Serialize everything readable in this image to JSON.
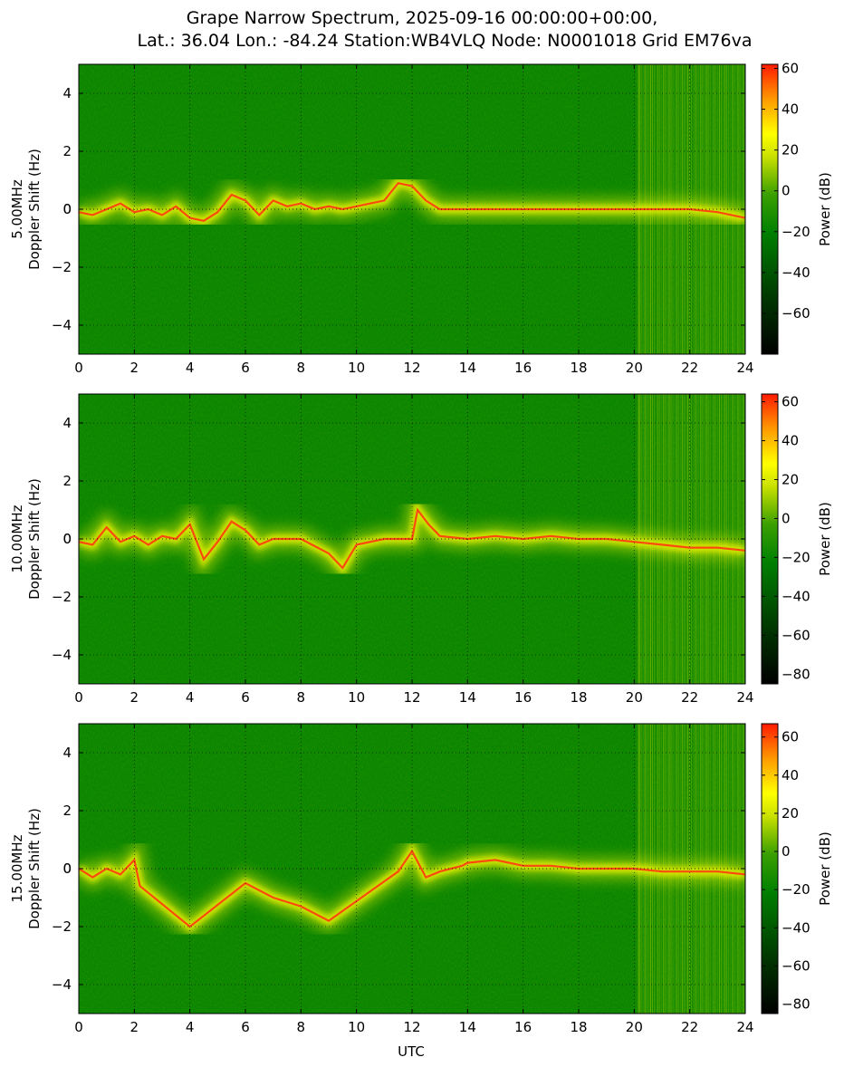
{
  "figure": {
    "title_line1": "Grape Narrow Spectrum, 2025-09-16 00:00:00+00:00,",
    "title_line2": "Lat.: 36.04 Lon.: -84.24 Station:WB4VLQ Node: N0001018 Grid EM76va",
    "xlabel": "UTC"
  },
  "colors": {
    "colormap": [
      "#000000",
      "#004d00",
      "#008000",
      "#3aa000",
      "#b8d800",
      "#ffff00",
      "#ffa000",
      "#ff2000"
    ],
    "background_green": "#008000",
    "ridge_red": "#ff3a10",
    "halo_yellow": "#e8f000"
  },
  "chart_data": [
    {
      "type": "heatmap",
      "band_label": "5.00MHz",
      "ylabel": "Doppler Shift (Hz)",
      "xlim": [
        0,
        24
      ],
      "ylim": [
        -5,
        5
      ],
      "xticks": [
        "0",
        "2",
        "4",
        "6",
        "8",
        "10",
        "12",
        "14",
        "16",
        "18",
        "20",
        "22",
        "24"
      ],
      "yticks": [
        "-4",
        "-2",
        "0",
        "2",
        "4"
      ],
      "grid": true,
      "colorbar": {
        "label": "Power (dB)",
        "range": [
          -80,
          62
        ],
        "ticks": [
          "60",
          "40",
          "20",
          "0",
          "−20",
          "−40",
          "−60"
        ]
      },
      "doppler_trace": {
        "x": [
          0,
          0.5,
          1,
          1.5,
          2,
          2.5,
          3,
          3.5,
          4,
          4.5,
          5,
          5.5,
          6,
          6.5,
          7,
          7.5,
          8,
          8.5,
          9,
          9.5,
          10,
          10.5,
          11,
          11.5,
          12,
          12.5,
          13,
          14,
          16,
          18,
          20,
          21,
          22,
          23,
          24
        ],
        "y": [
          -0.1,
          -0.2,
          0.0,
          0.2,
          -0.1,
          0.0,
          -0.2,
          0.1,
          -0.3,
          -0.4,
          -0.1,
          0.5,
          0.3,
          -0.2,
          0.3,
          0.1,
          0.2,
          0.0,
          0.1,
          0.0,
          0.1,
          0.2,
          0.3,
          0.9,
          0.8,
          0.3,
          0.0,
          0.0,
          0.0,
          0.0,
          0.0,
          0.0,
          0.0,
          -0.1,
          -0.3
        ]
      },
      "signal_segments": [
        [
          0,
          13.5
        ],
        [
          21.5,
          24
        ]
      ]
    },
    {
      "type": "heatmap",
      "band_label": "10.00MHz",
      "ylabel": "Doppler Shift (Hz)",
      "xlim": [
        0,
        24
      ],
      "ylim": [
        -5,
        5
      ],
      "xticks": [
        "0",
        "2",
        "4",
        "6",
        "8",
        "10",
        "12",
        "14",
        "16",
        "18",
        "20",
        "22",
        "24"
      ],
      "yticks": [
        "-4",
        "-2",
        "0",
        "2",
        "4"
      ],
      "grid": true,
      "colorbar": {
        "label": "Power (dB)",
        "range": [
          -85,
          64
        ],
        "ticks": [
          "60",
          "40",
          "20",
          "0",
          "−20",
          "−40",
          "−60",
          "−80"
        ]
      },
      "doppler_trace": {
        "x": [
          0,
          0.5,
          1,
          1.5,
          2,
          2.5,
          3,
          3.5,
          4,
          4.5,
          5,
          5.5,
          6,
          6.5,
          7,
          8,
          9,
          9.5,
          10,
          11,
          12,
          12.2,
          12.6,
          13,
          14,
          15,
          16,
          17,
          18,
          19,
          20,
          21,
          22,
          23,
          24
        ],
        "y": [
          -0.1,
          -0.2,
          0.4,
          -0.1,
          0.1,
          -0.2,
          0.1,
          0.0,
          0.5,
          -0.7,
          -0.1,
          0.6,
          0.3,
          -0.2,
          0.0,
          0.0,
          -0.5,
          -1.0,
          -0.2,
          0.0,
          0.0,
          1.0,
          0.5,
          0.1,
          0.0,
          0.1,
          0.0,
          0.1,
          0.0,
          0.0,
          -0.1,
          -0.2,
          -0.3,
          -0.3,
          -0.4
        ]
      },
      "signal_segments": [
        [
          0,
          24
        ]
      ]
    },
    {
      "type": "heatmap",
      "band_label": "15.00MHz",
      "ylabel": "Doppler Shift (Hz)",
      "xlim": [
        0,
        24
      ],
      "ylim": [
        -5,
        5
      ],
      "xticks": [
        "0",
        "2",
        "4",
        "6",
        "8",
        "10",
        "12",
        "14",
        "16",
        "18",
        "20",
        "22",
        "24"
      ],
      "yticks": [
        "-4",
        "-2",
        "0",
        "2",
        "4"
      ],
      "grid": true,
      "colorbar": {
        "label": "Power (dB)",
        "range": [
          -85,
          67
        ],
        "ticks": [
          "60",
          "40",
          "20",
          "0",
          "−20",
          "−40",
          "−60",
          "−80"
        ]
      },
      "doppler_trace": {
        "x": [
          0,
          0.5,
          1,
          1.5,
          2,
          2.2,
          4,
          6,
          7,
          8,
          9,
          11.5,
          12,
          12.5,
          13,
          13.8,
          14,
          15,
          16,
          17,
          18,
          19,
          20,
          21,
          22,
          23,
          24
        ],
        "y": [
          0.0,
          -0.3,
          0.0,
          -0.2,
          0.3,
          -0.6,
          -2.0,
          -0.5,
          -1.0,
          -1.3,
          -1.8,
          -0.1,
          0.6,
          -0.3,
          -0.1,
          0.1,
          0.2,
          0.3,
          0.1,
          0.1,
          0.0,
          0.0,
          0.0,
          -0.1,
          -0.1,
          -0.1,
          -0.2
        ]
      },
      "signal_segments": [
        [
          0,
          2.3
        ],
        [
          13.7,
          24
        ]
      ]
    }
  ]
}
